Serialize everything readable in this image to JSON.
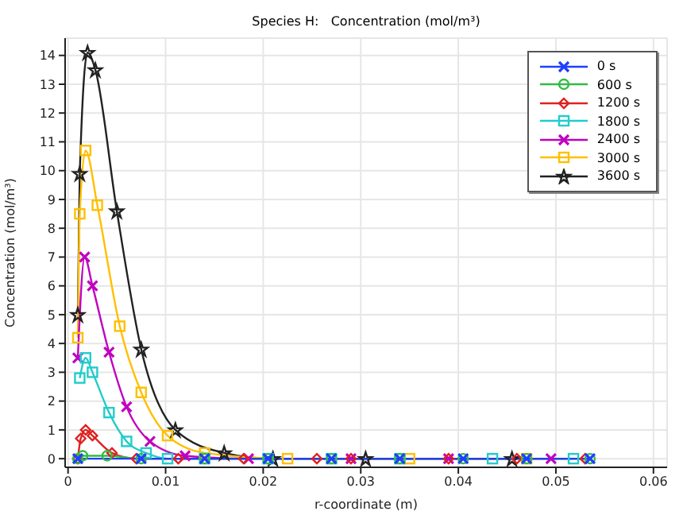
{
  "chart_data": {
    "type": "line",
    "title": "Species H:   Concentration (mol/m³)",
    "xlabel": "r-coordinate (m)",
    "ylabel": "Concentration (mol/m³)",
    "xlim": [
      -0.0003,
      0.0614
    ],
    "ylim": [
      -0.3,
      14.6
    ],
    "xticks": [
      0,
      0.01,
      0.02,
      0.03,
      0.04,
      0.05,
      0.06
    ],
    "yticks": [
      0,
      1,
      2,
      3,
      4,
      5,
      6,
      7,
      8,
      9,
      10,
      11,
      12,
      13,
      14
    ],
    "grid": true,
    "legend": "top right",
    "series": [
      {
        "name": "0 s",
        "color": "#1f3fff",
        "marker": "cross",
        "x": [
          0.001,
          0.0075,
          0.014,
          0.0205,
          0.027,
          0.034,
          0.0405,
          0.047,
          0.0535
        ],
        "values": [
          0,
          0,
          0,
          0,
          0,
          0,
          0,
          0,
          0
        ]
      },
      {
        "name": "600 s",
        "color": "#33bb44",
        "marker": "circle",
        "x": [
          0.001,
          0.0015,
          0.004,
          0.0075,
          0.014,
          0.0205,
          0.027,
          0.034,
          0.0405,
          0.047,
          0.0535
        ],
        "values": [
          0,
          0.1,
          0.1,
          0,
          0,
          0,
          0,
          0,
          0,
          0,
          0
        ]
      },
      {
        "name": "1200 s",
        "color": "#e02020",
        "marker": "diamond",
        "x": [
          0.001,
          0.0013,
          0.0018,
          0.0025,
          0.0045,
          0.007,
          0.0113,
          0.018,
          0.0255,
          0.029,
          0.039,
          0.046,
          0.053
        ],
        "values": [
          0,
          0.7,
          1.0,
          0.8,
          0.2,
          0,
          0,
          0,
          0,
          0,
          0,
          0,
          0
        ]
      },
      {
        "name": "1800 s",
        "color": "#22cccc",
        "marker": "square",
        "x": [
          0.0012,
          0.0018,
          0.0025,
          0.0042,
          0.006,
          0.008,
          0.0102,
          0.014,
          0.0205,
          0.027,
          0.034,
          0.0435,
          0.0518
        ],
        "values": [
          2.8,
          3.5,
          3.0,
          1.6,
          0.6,
          0.2,
          0,
          0,
          0,
          0,
          0,
          0,
          0
        ]
      },
      {
        "name": "2400 s",
        "color": "#c000c0",
        "marker": "cross",
        "x": [
          0.001,
          0.0017,
          0.0025,
          0.0042,
          0.006,
          0.0084,
          0.012,
          0.0185,
          0.029,
          0.039,
          0.0495
        ],
        "values": [
          3.5,
          7.0,
          6.0,
          3.7,
          1.8,
          0.6,
          0.1,
          0,
          0,
          0,
          0
        ]
      },
      {
        "name": "3000 s",
        "color": "#ffbf00",
        "marker": "square",
        "x": [
          0.001,
          0.0012,
          0.0018,
          0.003,
          0.0053,
          0.0075,
          0.0102,
          0.014,
          0.0225,
          0.035,
          0.047
        ],
        "values": [
          4.2,
          8.5,
          10.7,
          8.8,
          4.6,
          2.3,
          0.8,
          0.2,
          0,
          0,
          0
        ]
      },
      {
        "name": "3600 s",
        "color": "#222222",
        "marker": "star",
        "x": [
          0.001,
          0.0012,
          0.002,
          0.0028,
          0.005,
          0.0075,
          0.011,
          0.016,
          0.021,
          0.0305,
          0.0455
        ],
        "values": [
          5.0,
          9.9,
          14.1,
          13.5,
          8.6,
          3.8,
          1.0,
          0.2,
          0,
          0,
          0
        ]
      }
    ]
  }
}
